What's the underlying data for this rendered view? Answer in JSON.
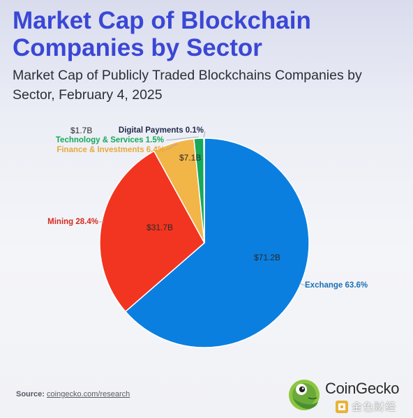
{
  "title": "Market Cap of Blockchain Companies by Sector",
  "subtitle": "Market Cap of Publicly Traded Blockchains Companies by Sector, February 4, 2025",
  "source": {
    "label": "Source:",
    "link": "coingecko.com/research"
  },
  "brand": {
    "name": "CoinGecko",
    "watermark": "金色财经",
    "icon": "gecko-logo-icon",
    "watermark_icon": "golden-square-icon"
  },
  "chart_data": {
    "type": "pie",
    "start_angle_deg": 0,
    "direction": "clockwise",
    "slices": [
      {
        "category": "Exchange",
        "percent": 63.6,
        "percent_label": "63.6%",
        "value": 71.2,
        "value_label": "$71.2B",
        "color": "#0a7fe0",
        "label_color": "#1a6fb5"
      },
      {
        "category": "Mining",
        "percent": 28.4,
        "percent_label": "28.4%",
        "value": 31.7,
        "value_label": "$31.7B",
        "color": "#f23520",
        "label_color": "#d62a1e"
      },
      {
        "category": "Finance & Investments",
        "percent": 6.4,
        "percent_label": "6.4%",
        "value": 7.1,
        "value_label": "$7.1B",
        "color": "#f2b548",
        "label_color": "#e8a93c"
      },
      {
        "category": "Technology & Services",
        "percent": 1.5,
        "percent_label": "1.5%",
        "value": 1.7,
        "value_label": "$1.7B",
        "color": "#17a85a",
        "label_color": "#17a85a"
      },
      {
        "category": "Digital Payments",
        "percent": 0.1,
        "percent_label": "0.1%",
        "value": null,
        "value_label": "",
        "color": "#1f2a4a",
        "label_color": "#1f2a4a"
      }
    ]
  }
}
